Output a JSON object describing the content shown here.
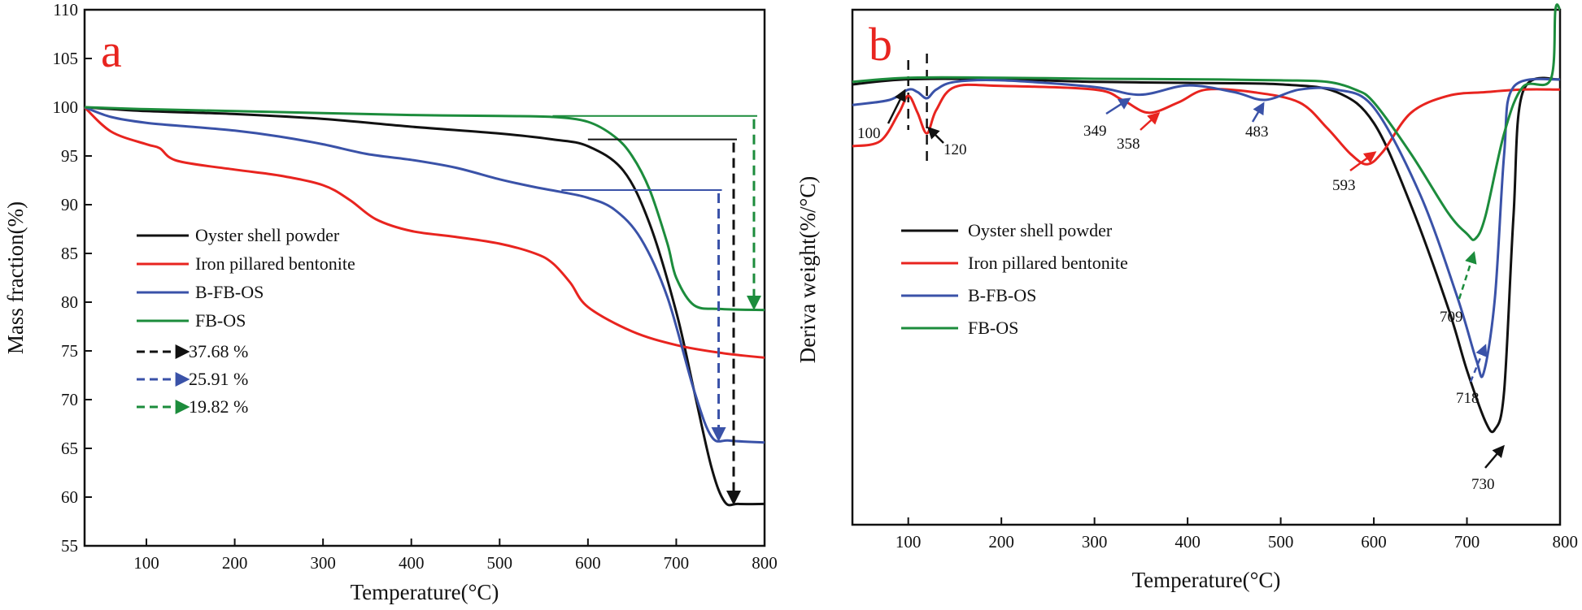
{
  "chart_data": [
    {
      "panel": "a",
      "type": "line",
      "xlabel": "Temperature(°C)",
      "ylabel": "Mass fraction(%)",
      "xlim": [
        30,
        800
      ],
      "ylim": [
        55,
        110
      ],
      "xticks": [
        100,
        200,
        300,
        400,
        500,
        600,
        700,
        800
      ],
      "yticks": [
        55,
        60,
        65,
        70,
        75,
        80,
        85,
        90,
        95,
        100,
        105,
        110
      ],
      "legend_position": "center-left",
      "series": [
        {
          "name": "Oyster shell powder",
          "color": "#111111",
          "x": [
            30,
            100,
            200,
            300,
            400,
            500,
            560,
            600,
            640,
            670,
            700,
            720,
            740,
            755,
            770,
            800
          ],
          "y": [
            100,
            99.6,
            99.3,
            98.8,
            98.0,
            97.3,
            96.7,
            96.0,
            93.5,
            88,
            79,
            71,
            63,
            59.5,
            59.3,
            59.3
          ]
        },
        {
          "name": "Iron pillared bentonite",
          "color": "#e8241f",
          "x": [
            30,
            60,
            100,
            115,
            135,
            200,
            250,
            300,
            330,
            360,
            400,
            450,
            500,
            540,
            560,
            580,
            600,
            650,
            700,
            750,
            800
          ],
          "y": [
            100,
            97.5,
            96.2,
            95.8,
            94.5,
            93.6,
            93.0,
            92.0,
            90.5,
            88.5,
            87.3,
            86.7,
            86.0,
            85.0,
            84,
            82,
            79.5,
            77.0,
            75.6,
            74.8,
            74.3
          ]
        },
        {
          "name": "B-FB-OS",
          "color": "#3a52a8",
          "x": [
            30,
            60,
            100,
            150,
            200,
            250,
            300,
            350,
            400,
            450,
            500,
            540,
            570,
            600,
            630,
            660,
            690,
            720,
            740,
            760,
            800
          ],
          "y": [
            100,
            99.0,
            98.4,
            98.0,
            97.6,
            97.0,
            96.2,
            95.2,
            94.6,
            93.8,
            92.6,
            91.8,
            91.3,
            90.7,
            89.5,
            86.5,
            80.5,
            71.0,
            66.2,
            65.8,
            65.6
          ]
        },
        {
          "name": "FB-OS",
          "color": "#1c8c3c",
          "x": [
            30,
            100,
            200,
            300,
            400,
            500,
            560,
            600,
            630,
            650,
            670,
            690,
            700,
            720,
            750,
            800
          ],
          "y": [
            100,
            99.8,
            99.6,
            99.4,
            99.2,
            99.1,
            99.0,
            98.5,
            97.0,
            95.0,
            91.5,
            86.0,
            82.5,
            79.7,
            79.3,
            79.2
          ]
        }
      ],
      "mass_loss_markers": [
        {
          "label": "37.68 %",
          "color": "#111111",
          "x": 765,
          "y_from": 96.7,
          "y_to": 59.3
        },
        {
          "label": "25.91 %",
          "color": "#3a52a8",
          "x": 748,
          "y_from": 91.5,
          "y_to": 65.8
        },
        {
          "label": "19.82 %",
          "color": "#1c8c3c",
          "x": 788,
          "y_from": 99.1,
          "y_to": 79.3
        }
      ]
    },
    {
      "panel": "b",
      "type": "line",
      "xlabel": "Temperature(°C)",
      "ylabel": "Deriva weight(%/°C)",
      "xlim": [
        40,
        800
      ],
      "ylim": [
        0,
        100
      ],
      "xticks": [
        100,
        200,
        300,
        400,
        500,
        600,
        700,
        800
      ],
      "legend_position": "center-left",
      "series": [
        {
          "name": "Oyster shell powder",
          "color": "#111111",
          "x": [
            40,
            100,
            200,
            300,
            400,
            500,
            560,
            600,
            640,
            680,
            700,
            720,
            730,
            740,
            750,
            760,
            800
          ],
          "y": [
            85.5,
            86.5,
            86.5,
            86.0,
            85.8,
            85.5,
            84.0,
            78.0,
            62.0,
            42.0,
            30.0,
            20.0,
            18.5,
            26.0,
            60.0,
            84.0,
            86.5
          ]
        },
        {
          "name": "Iron pillared bentonite",
          "color": "#e8241f",
          "x": [
            40,
            70,
            90,
            100,
            110,
            120,
            130,
            150,
            200,
            300,
            330,
            358,
            390,
            420,
            470,
            520,
            550,
            575,
            593,
            610,
            640,
            680,
            720,
            760,
            800
          ],
          "y": [
            73.5,
            74.5,
            80.0,
            83.3,
            80.0,
            76.0,
            80.5,
            85.0,
            85.2,
            84.5,
            82.5,
            80.0,
            82.0,
            84.5,
            84.0,
            82.0,
            77.0,
            72.0,
            70.0,
            72.5,
            80.0,
            83.3,
            84.0,
            84.5,
            84.5
          ]
        },
        {
          "name": "B-FB-OS",
          "color": "#3a52a8",
          "x": [
            40,
            80,
            100,
            110,
            120,
            130,
            150,
            200,
            300,
            349,
            400,
            450,
            483,
            520,
            560,
            600,
            650,
            690,
            710,
            718,
            730,
            740,
            750,
            800
          ],
          "y": [
            81.5,
            82.5,
            84.5,
            84.0,
            82.8,
            84.5,
            86.0,
            86.3,
            85.0,
            83.5,
            85.3,
            84.0,
            82.5,
            84.5,
            84.5,
            81.0,
            64.0,
            44.0,
            32.0,
            29.5,
            44.0,
            72.0,
            85.0,
            86.5
          ]
        },
        {
          "name": "FB-OS",
          "color": "#1c8c3c",
          "x": [
            40,
            100,
            200,
            300,
            400,
            500,
            550,
            580,
            600,
            640,
            680,
            700,
            709,
            720,
            740,
            760,
            790,
            795,
            800
          ],
          "y": [
            86.0,
            86.8,
            86.8,
            86.6,
            86.5,
            86.3,
            86.0,
            84.5,
            82.0,
            72.0,
            60.5,
            56.5,
            55.5,
            60.0,
            76.0,
            85.0,
            86.5,
            100,
            100
          ]
        }
      ],
      "peak_labels": [
        {
          "label": "100",
          "color": "#111111"
        },
        {
          "label": "120",
          "color": "#111111"
        },
        {
          "label": "349",
          "color": "#3a52a8"
        },
        {
          "label": "358",
          "color": "#e8241f"
        },
        {
          "label": "483",
          "color": "#3a52a8"
        },
        {
          "label": "593",
          "color": "#e8241f"
        },
        {
          "label": "709",
          "color": "#1c8c3c"
        },
        {
          "label": "718",
          "color": "#3a52a8"
        },
        {
          "label": "730",
          "color": "#111111"
        }
      ]
    }
  ],
  "panels": {
    "a": {
      "label": "a"
    },
    "b": {
      "label": "b"
    }
  },
  "legend_a": {
    "items": [
      "Oyster shell powder",
      "Iron pillared bentonite",
      "B-FB-OS",
      "FB-OS"
    ],
    "marker_items": [
      "37.68 %",
      "25.91 %",
      "19.82 %"
    ]
  },
  "legend_b": {
    "items": [
      "Oyster shell powder",
      "Iron pillared bentonite",
      "B-FB-OS",
      "FB-OS"
    ]
  }
}
